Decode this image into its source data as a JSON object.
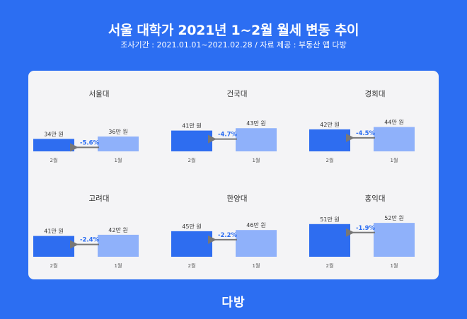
{
  "header": {
    "title": "서울 대학가 2021년 1~2월 월세 변동 추이",
    "subtitle": "조사기간 : 2021.01.01~2021.02.28 / 자료 제공 : 부동산 앱 다방"
  },
  "logo": {
    "text": "다방"
  },
  "colors": {
    "background": "#2c6ef2",
    "panel": "#f4f4f6",
    "feb_bar": "#2e6df0",
    "jan_bar": "#8fb1fa",
    "change_text": "#2c6ef2",
    "arrow": "#777777"
  },
  "chart_data": [
    {
      "type": "bar",
      "title": "서울대",
      "categories": [
        "2월",
        "1월"
      ],
      "values": [
        34,
        36
      ],
      "value_labels": [
        "34만 원",
        "36만 원"
      ],
      "change_label": "-5.6%"
    },
    {
      "type": "bar",
      "title": "건국대",
      "categories": [
        "2월",
        "1월"
      ],
      "values": [
        41,
        43
      ],
      "value_labels": [
        "41만 원",
        "43만 원"
      ],
      "change_label": "-4.7%"
    },
    {
      "type": "bar",
      "title": "경희대",
      "categories": [
        "2월",
        "1월"
      ],
      "values": [
        42,
        44
      ],
      "value_labels": [
        "42만 원",
        "44만 원"
      ],
      "change_label": "-4.5%"
    },
    {
      "type": "bar",
      "title": "고려대",
      "categories": [
        "2월",
        "1월"
      ],
      "values": [
        41,
        42
      ],
      "value_labels": [
        "41만 원",
        "42만 원"
      ],
      "change_label": "-2.4%"
    },
    {
      "type": "bar",
      "title": "한양대",
      "categories": [
        "2월",
        "1월"
      ],
      "values": [
        45,
        46
      ],
      "value_labels": [
        "45만 원",
        "46만 원"
      ],
      "change_label": "-2.2%"
    },
    {
      "type": "bar",
      "title": "홍익대",
      "categories": [
        "2월",
        "1월"
      ],
      "values": [
        51,
        52
      ],
      "value_labels": [
        "51만 원",
        "52만 원"
      ],
      "change_label": "-1.9%"
    }
  ]
}
